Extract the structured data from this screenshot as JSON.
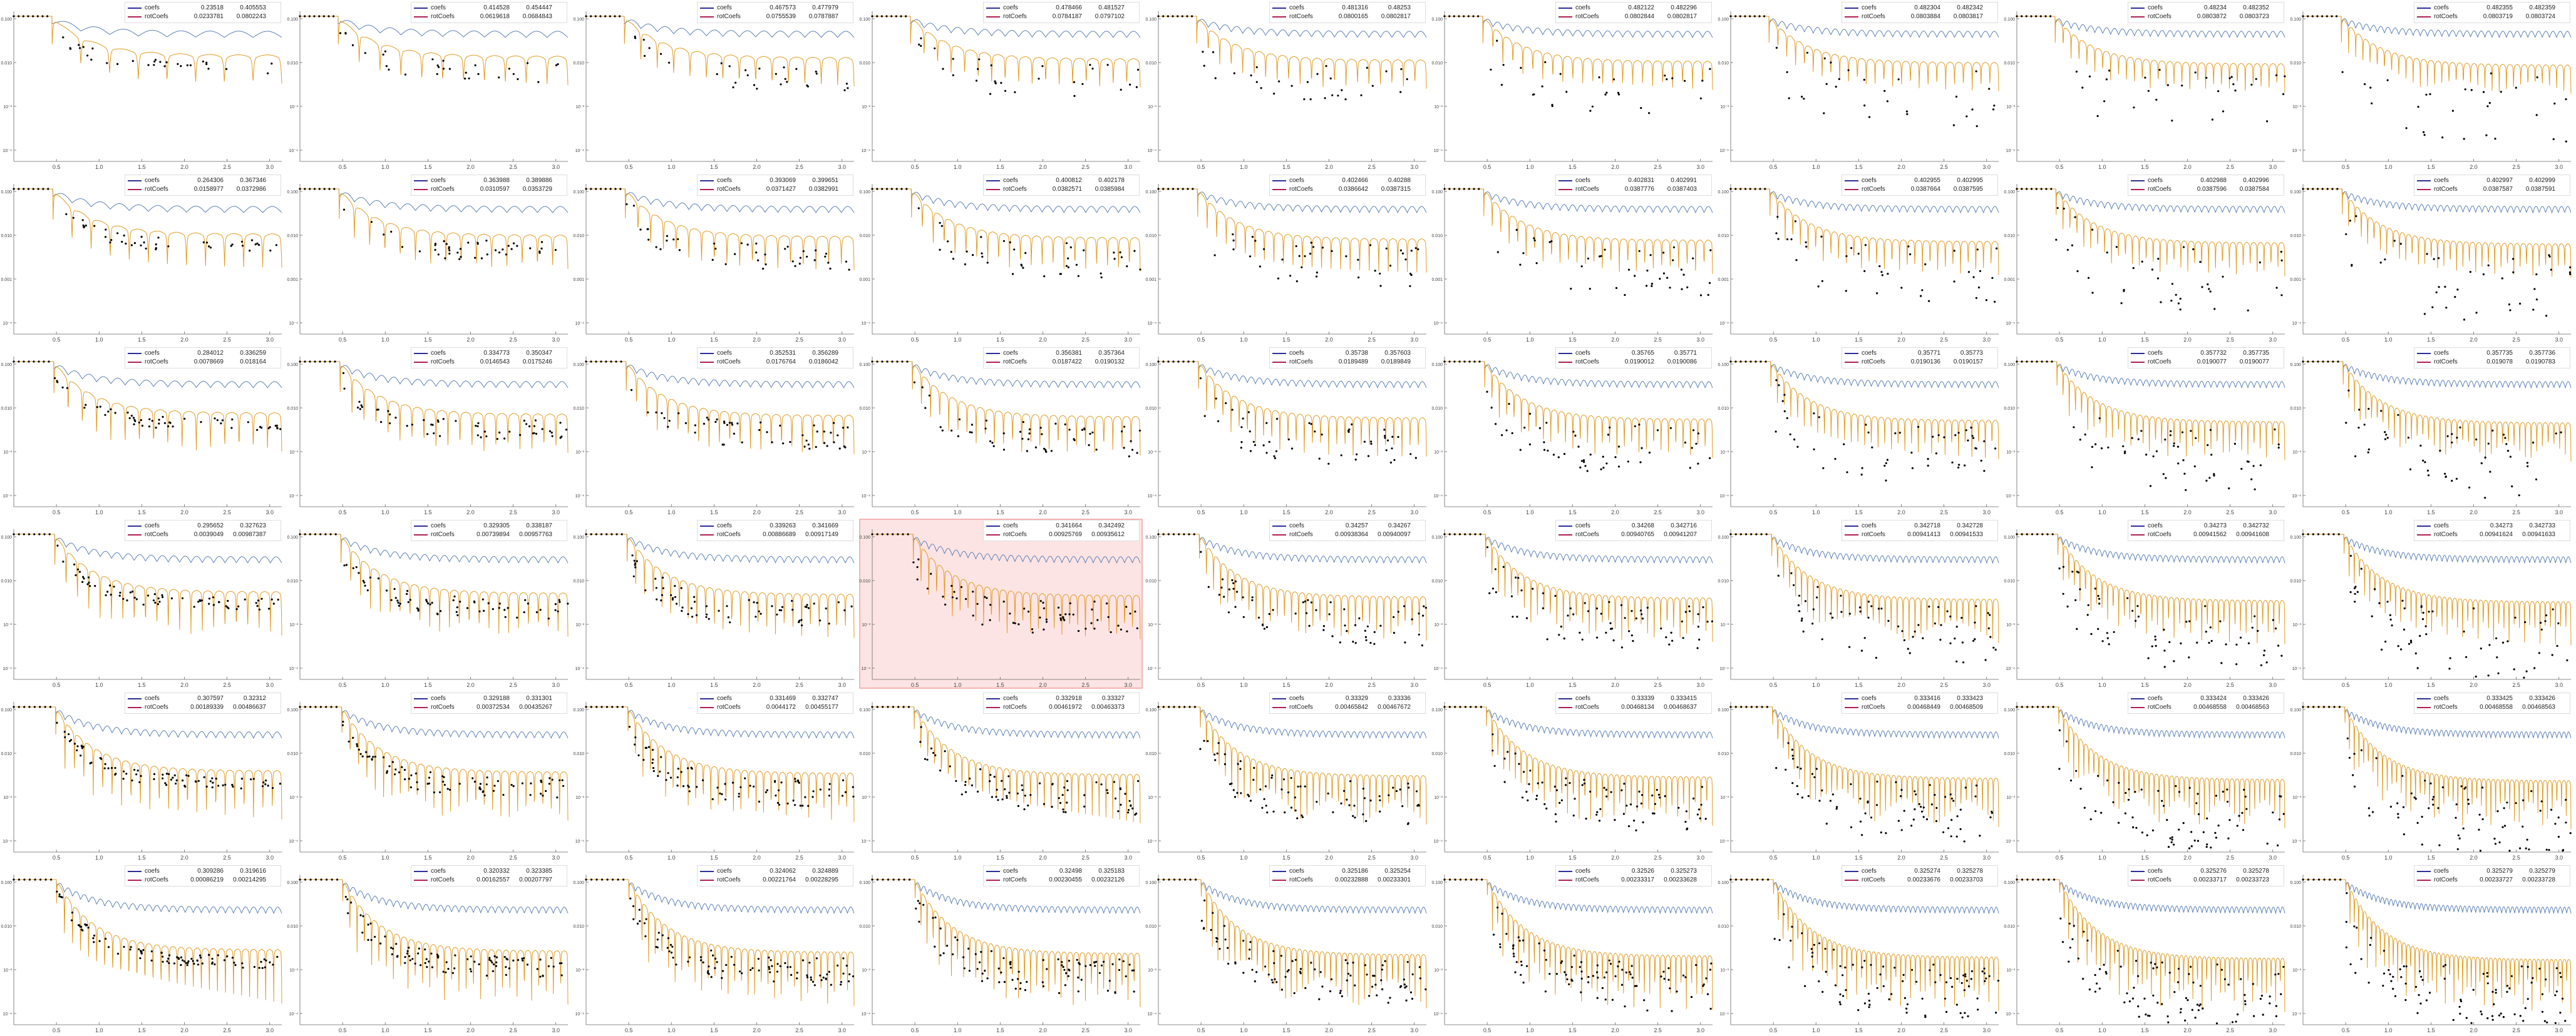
{
  "colors": {
    "coefs": "#5e81b5",
    "rotCoefs": "#e19c24",
    "points": "#000000",
    "highlight": "#fde4e4",
    "highlight_border": "#f0a0a0",
    "coefs_swatch": "#2f2f99",
    "rotCoefs_swatch": "#b02050"
  },
  "chart_data": {
    "type": "line",
    "layout": {
      "rows": 6,
      "cols": 9,
      "highlight": [
        3,
        3
      ]
    },
    "y_scale": "log",
    "xlim": [
      0,
      3.1416
    ],
    "x_ticks": [
      "0.5",
      "1.0",
      "1.5",
      "2.0",
      "2.5",
      "3.0"
    ],
    "series_names": [
      "coefs",
      "rotCoefs"
    ],
    "legends": [
      [
        [
          "0.23518",
          "0.405553",
          "0.0233781",
          "0.0802243"
        ],
        [
          "0.414528",
          "0.454447",
          "0.0619618",
          "0.0684843"
        ],
        [
          "0.467573",
          "0.477979",
          "0.0755539",
          "0.0787887"
        ],
        [
          "0.478466",
          "0.481527",
          "0.0784187",
          "0.0797102"
        ],
        [
          "0.481316",
          "0.48253",
          "0.0800165",
          "0.0802817"
        ],
        [
          "0.482122",
          "0.482296",
          "0.0802844",
          "0.0802817"
        ],
        [
          "0.482304",
          "0.482342",
          "0.0803884",
          "0.0803817"
        ],
        [
          "0.48234",
          "0.482352",
          "0.0803872",
          "0.0803723"
        ],
        [
          "0.482355",
          "0.482359",
          "0.0803719",
          "0.0803724"
        ]
      ],
      [
        [
          "0.264306",
          "0.367346",
          "0.0158977",
          "0.0372986"
        ],
        [
          "0.363988",
          "0.389886",
          "0.0310597",
          "0.0353729"
        ],
        [
          "0.393069",
          "0.399651",
          "0.0371427",
          "0.0382991"
        ],
        [
          "0.400812",
          "0.402178",
          "0.0382571",
          "0.0385984"
        ],
        [
          "0.402466",
          "0.40288",
          "0.0386642",
          "0.0387315"
        ],
        [
          "0.402831",
          "0.402991",
          "0.0387776",
          "0.0387403"
        ],
        [
          "0.402955",
          "0.402995",
          "0.0387664",
          "0.0387595"
        ],
        [
          "0.402988",
          "0.402996",
          "0.0387596",
          "0.0387584"
        ],
        [
          "0.402997",
          "0.402999",
          "0.0387587",
          "0.0387591"
        ]
      ],
      [
        [
          "0.284012",
          "0.336259",
          "0.0078669",
          "0.018164"
        ],
        [
          "0.334773",
          "0.350347",
          "0.0146543",
          "0.0175246"
        ],
        [
          "0.352531",
          "0.356289",
          "0.0176764",
          "0.0186042"
        ],
        [
          "0.356381",
          "0.357364",
          "0.0187422",
          "0.0190132"
        ],
        [
          "0.35738",
          "0.357603",
          "0.0189489",
          "0.0189849"
        ],
        [
          "0.35765",
          "0.35771",
          "0.0190012",
          "0.0190086"
        ],
        [
          "0.35771",
          "0.35773",
          "0.0190136",
          "0.0190157"
        ],
        [
          "0.357732",
          "0.357735",
          "0.0190077",
          "0.0190077"
        ],
        [
          "0.357735",
          "0.357736",
          "0.019078",
          "0.0190783"
        ]
      ],
      [
        [
          "0.295652",
          "0.327623",
          "0.0039049",
          "0.00987387"
        ],
        [
          "0.329305",
          "0.338187",
          "0.00739894",
          "0.00957763"
        ],
        [
          "0.339263",
          "0.341669",
          "0.00886689",
          "0.00917149"
        ],
        [
          "0.341664",
          "0.342492",
          "0.00925769",
          "0.00935612"
        ],
        [
          "0.34257",
          "0.34267",
          "0.00938364",
          "0.00940097"
        ],
        [
          "0.34268",
          "0.342716",
          "0.00940765",
          "0.00941207"
        ],
        [
          "0.342718",
          "0.342728",
          "0.00941413",
          "0.00941533"
        ],
        [
          "0.34273",
          "0.342732",
          "0.00941562",
          "0.00941608"
        ],
        [
          "0.34273",
          "0.342733",
          "0.00941624",
          "0.00941633"
        ]
      ],
      [
        [
          "0.307597",
          "0.32312",
          "0.00189339",
          "0.00486637"
        ],
        [
          "0.329188",
          "0.331301",
          "0.00372534",
          "0.00435267"
        ],
        [
          "0.331469",
          "0.332747",
          "0.0044172",
          "0.00455177"
        ],
        [
          "0.332918",
          "0.33327",
          "0.00461972",
          "0.00463373"
        ],
        [
          "0.33329",
          "0.33336",
          "0.00465842",
          "0.00467672"
        ],
        [
          "0.33339",
          "0.333415",
          "0.00468134",
          "0.00468637"
        ],
        [
          "0.333416",
          "0.333423",
          "0.00468449",
          "0.00468509"
        ],
        [
          "0.333424",
          "0.333426",
          "0.00468558",
          "0.00468563"
        ],
        [
          "0.333425",
          "0.333426",
          "0.00468558",
          "0.00468563"
        ]
      ],
      [
        [
          "0.309286",
          "0.319616",
          "0.00086219",
          "0.00214295"
        ],
        [
          "0.320332",
          "0.323385",
          "0.00162557",
          "0.00207797"
        ],
        [
          "0.324062",
          "0.324889",
          "0.00221764",
          "0.00228295"
        ],
        [
          "0.32498",
          "0.325183",
          "0.00230455",
          "0.00232126"
        ],
        [
          "0.325186",
          "0.325254",
          "0.00232888",
          "0.00233301"
        ],
        [
          "0.32526",
          "0.325273",
          "0.00233317",
          "0.00233628"
        ],
        [
          "0.325274",
          "0.325278",
          "0.00233676",
          "0.00233703"
        ],
        [
          "0.325276",
          "0.325278",
          "0.00233717",
          "0.00233723"
        ],
        [
          "0.325279",
          "0.325279",
          "0.00233727",
          "0.00233728"
        ]
      ]
    ],
    "y_ticks": [
      [
        "0.100",
        "0.010",
        "10⁻³",
        "10⁻⁴"
      ],
      [
        "0.100",
        "0.010",
        "0.001",
        "10⁻⁴"
      ],
      [
        "0.100",
        "0.010",
        "10⁻³",
        "10⁻⁴"
      ],
      [
        "0.100",
        "0.010",
        "10⁻³",
        "10⁻⁴"
      ],
      [
        "0.100",
        "0.010",
        "10⁻³",
        "10⁻⁴"
      ],
      [
        "0.100",
        "0.010",
        "10⁻³",
        "10⁻⁴"
      ]
    ]
  }
}
